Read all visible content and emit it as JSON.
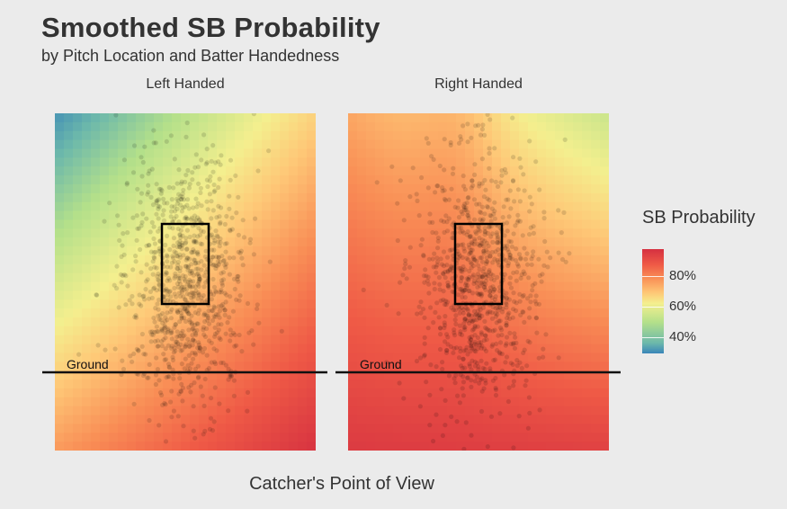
{
  "chart_data": {
    "type": "heatmap",
    "title": "Smoothed SB Probability",
    "subtitle": "by Pitch Location and Batter Handedness",
    "caption": "Catcher's Point of View",
    "panels": [
      {
        "label": "Left Handed",
        "corners": {
          "top_left": 0.3,
          "top_right": 0.64,
          "bottom_left": 0.74,
          "bottom_right": 0.97
        },
        "ground_label": "Ground"
      },
      {
        "label": "Right Handed",
        "corners": {
          "top_left": 0.72,
          "top_right": 0.5,
          "bottom_left": 0.95,
          "bottom_right": 0.93
        },
        "ground_label": "Ground"
      }
    ],
    "legend": {
      "title": "SB Probability",
      "placement": "right",
      "labels": [
        "80%",
        "60%",
        "40%"
      ],
      "values": [
        0.8,
        0.6,
        0.4
      ],
      "range": [
        0.28,
        0.98
      ]
    },
    "colors": {
      "low": "#3a86b9",
      "mid_low": "#b4e08a",
      "mid": "#f4ef8e",
      "mid_high": "#f98f56",
      "high": "#d53040",
      "background": "#ebebeb"
    }
  }
}
